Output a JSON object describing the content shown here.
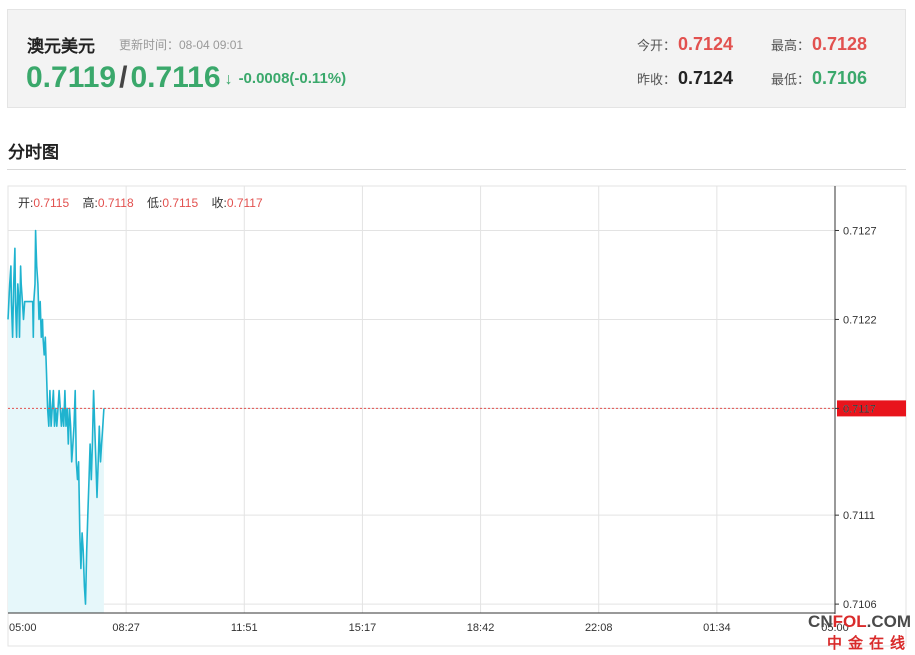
{
  "quote": {
    "name": "澳元美元",
    "update_time_label": "更新时间：08-04 09:01",
    "bid": "0.7119",
    "separator": "/",
    "ask": "0.7116",
    "arrow": "↓",
    "change": "-0.0008(-0.11%)",
    "stats": {
      "open_label": "今开：",
      "open_value": "0.7124",
      "high_label": "最高：",
      "high_value": "0.7128",
      "prev_close_label": "昨收：",
      "prev_close_value": "0.7124",
      "low_label": "最低：",
      "low_value": "0.7106"
    }
  },
  "section": {
    "title": "分时图"
  },
  "ohlc": {
    "open_label": "开:",
    "open_value": "0.7115",
    "high_label": "高:",
    "high_value": "0.7118",
    "low_label": "低:",
    "low_value": "0.7115",
    "close_label": "收:",
    "close_value": "0.7117"
  },
  "colors": {
    "line": "#1fb3cf",
    "area": "#e6f7fa",
    "grid": "#e3e3e3",
    "ref_line": "#e2514f",
    "current_badge": "#e8141c",
    "up": "#e2514f",
    "down": "#3aa86b"
  },
  "chart_data": {
    "type": "line",
    "x_tick_labels": [
      "05:00",
      "08:27",
      "11:51",
      "15:17",
      "18:42",
      "22:08",
      "01:34",
      "05:00"
    ],
    "y_tick_labels": [
      "0.7127",
      "0.7122",
      "0.7117",
      "0.7111",
      "0.7106"
    ],
    "ylim": [
      0.71055,
      0.71295
    ],
    "y_ticks": [
      0.7127,
      0.7122,
      0.7117,
      0.7111,
      0.7106
    ],
    "reference_value": 0.7117,
    "current_value_label": "0.7117",
    "x_minutes_total": 1440,
    "series": [
      {
        "values": [
          [
            0,
            0.7122
          ],
          [
            3,
            0.7124
          ],
          [
            5,
            0.7125
          ],
          [
            6,
            0.7123
          ],
          [
            8,
            0.7121
          ],
          [
            10,
            0.7124
          ],
          [
            12,
            0.7126
          ],
          [
            13,
            0.7123
          ],
          [
            15,
            0.7121
          ],
          [
            17,
            0.7124
          ],
          [
            19,
            0.7123
          ],
          [
            20,
            0.7121
          ],
          [
            22,
            0.7125
          ],
          [
            23,
            0.7124
          ],
          [
            25,
            0.7123
          ],
          [
            27,
            0.7122
          ],
          [
            29,
            0.7123
          ],
          [
            31,
            0.7123
          ],
          [
            33,
            0.7123
          ],
          [
            35,
            0.7123
          ],
          [
            37,
            0.7123
          ],
          [
            39,
            0.7123
          ],
          [
            41,
            0.7123
          ],
          [
            43,
            0.7123
          ],
          [
            44,
            0.7121
          ],
          [
            45,
            0.7123
          ],
          [
            47,
            0.7124
          ],
          [
            48,
            0.7127
          ],
          [
            49,
            0.7126
          ],
          [
            50,
            0.7125
          ],
          [
            52,
            0.7124
          ],
          [
            54,
            0.7122
          ],
          [
            56,
            0.7123
          ],
          [
            58,
            0.7121
          ],
          [
            60,
            0.7122
          ],
          [
            61,
            0.7121
          ],
          [
            63,
            0.712
          ],
          [
            65,
            0.7121
          ],
          [
            67,
            0.7119
          ],
          [
            69,
            0.7117
          ],
          [
            71,
            0.7116
          ],
          [
            73,
            0.7118
          ],
          [
            75,
            0.7116
          ],
          [
            77,
            0.7117
          ],
          [
            79,
            0.7118
          ],
          [
            81,
            0.7116
          ],
          [
            83,
            0.7117
          ],
          [
            85,
            0.7116
          ],
          [
            87,
            0.7117
          ],
          [
            89,
            0.7118
          ],
          [
            91,
            0.7117
          ],
          [
            93,
            0.7116
          ],
          [
            95,
            0.7117
          ],
          [
            97,
            0.7116
          ],
          [
            99,
            0.7118
          ],
          [
            101,
            0.7116
          ],
          [
            103,
            0.7117
          ],
          [
            105,
            0.7115
          ],
          [
            107,
            0.7117
          ],
          [
            109,
            0.7116
          ],
          [
            111,
            0.7114
          ],
          [
            113,
            0.7115
          ],
          [
            115,
            0.7116
          ],
          [
            117,
            0.7118
          ],
          [
            119,
            0.7114
          ],
          [
            121,
            0.7113
          ],
          [
            123,
            0.7114
          ],
          [
            125,
            0.711
          ],
          [
            127,
            0.7108
          ],
          [
            129,
            0.711
          ],
          [
            131,
            0.7109
          ],
          [
            133,
            0.7107
          ],
          [
            135,
            0.7106
          ],
          [
            137,
            0.7109
          ],
          [
            139,
            0.7111
          ],
          [
            141,
            0.7113
          ],
          [
            143,
            0.7115
          ],
          [
            145,
            0.7113
          ],
          [
            147,
            0.7115
          ],
          [
            149,
            0.7118
          ],
          [
            151,
            0.7116
          ],
          [
            153,
            0.7114
          ],
          [
            155,
            0.7112
          ],
          [
            157,
            0.7114
          ],
          [
            159,
            0.7116
          ],
          [
            161,
            0.7114
          ],
          [
            163,
            0.7115
          ],
          [
            165,
            0.7116
          ],
          [
            167,
            0.7117
          ]
        ]
      }
    ]
  },
  "watermark": {
    "top_prefix": "CN",
    "top_brand": "FOL",
    "top_suffix": ".COM",
    "bottom": "中金在线"
  }
}
